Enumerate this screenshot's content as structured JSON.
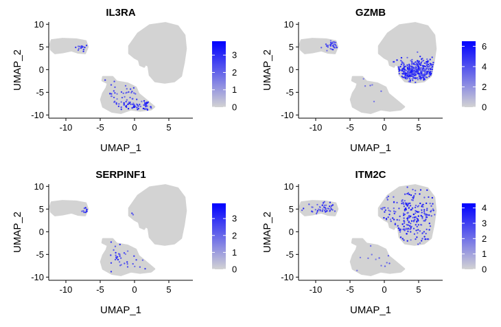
{
  "chart_data": [
    {
      "type": "scatter",
      "title": "IL3RA",
      "xlabel": "UMAP_1",
      "ylabel": "UMAP_2",
      "xlim": [
        -12.5,
        8.5
      ],
      "ylim": [
        -10.7,
        10.5
      ],
      "x_ticks": [
        -10,
        -5,
        0,
        5
      ],
      "y_ticks": [
        -10,
        -5,
        0,
        5,
        10
      ],
      "colorbar": {
        "min": 0,
        "max": 3.8,
        "ticks": [
          0,
          1,
          2,
          3
        ],
        "low_color": "#d3d3d3",
        "high_color": "#0000ff"
      },
      "hotspots": [
        {
          "cluster": "pdc",
          "x": -7.6,
          "y": 4.7,
          "sx": 0.5,
          "sy": 0.5,
          "count": 14,
          "max": 3.2
        },
        {
          "cluster": "bottom",
          "x": 1.2,
          "y": -8.0,
          "sx": 1.4,
          "sy": 0.7,
          "count": 60,
          "max": 3.5
        },
        {
          "cluster": "bottom",
          "x": -2.0,
          "y": -5.0,
          "sx": 2.0,
          "sy": 1.7,
          "count": 38,
          "max": 2.5
        }
      ]
    },
    {
      "type": "scatter",
      "title": "GZMB",
      "xlabel": "UMAP_1",
      "ylabel": "UMAP_2",
      "xlim": [
        -12.5,
        8.5
      ],
      "ylim": [
        -10.7,
        10.5
      ],
      "x_ticks": [
        -10,
        -5,
        0,
        5
      ],
      "y_ticks": [
        -10,
        -5,
        0,
        5,
        10
      ],
      "colorbar": {
        "min": 0,
        "max": 6.5,
        "ticks": [
          0,
          2,
          4,
          6
        ],
        "low_color": "#d3d3d3",
        "high_color": "#0000ff"
      },
      "hotspots": [
        {
          "cluster": "big",
          "x": 4.6,
          "y": -0.3,
          "sx": 1.7,
          "sy": 1.3,
          "count": 360,
          "max": 6.0
        },
        {
          "cluster": "pdc",
          "x": -7.3,
          "y": 5.3,
          "sx": 0.8,
          "sy": 0.6,
          "count": 30,
          "max": 5.5
        },
        {
          "cluster": "bottom",
          "x": -1.0,
          "y": -4.0,
          "sx": 2.0,
          "sy": 1.5,
          "count": 6,
          "max": 2.0
        }
      ]
    },
    {
      "type": "scatter",
      "title": "SERPINF1",
      "xlabel": "UMAP_1",
      "ylabel": "UMAP_2",
      "xlim": [
        -12.5,
        8.5
      ],
      "ylim": [
        -10.7,
        10.5
      ],
      "x_ticks": [
        -10,
        -5,
        0,
        5
      ],
      "y_ticks": [
        -10,
        -5,
        0,
        5,
        10
      ],
      "colorbar": {
        "min": 0,
        "max": 3.9,
        "ticks": [
          0,
          1,
          2,
          3
        ],
        "low_color": "#d3d3d3",
        "high_color": "#0000ff"
      },
      "hotspots": [
        {
          "cluster": "pdc",
          "x": -7.3,
          "y": 4.6,
          "sx": 0.4,
          "sy": 0.4,
          "count": 10,
          "max": 3.5
        },
        {
          "cluster": "bottom",
          "x": -1.5,
          "y": -5.5,
          "sx": 2.2,
          "sy": 2.0,
          "count": 35,
          "max": 3.0
        },
        {
          "cluster": "big",
          "x": -0.7,
          "y": 4.0,
          "sx": 0.3,
          "sy": 0.3,
          "count": 2,
          "max": 3.0
        }
      ]
    },
    {
      "type": "scatter",
      "title": "ITM2C",
      "xlabel": "UMAP_1",
      "ylabel": "UMAP_2",
      "xlim": [
        -12.5,
        8.5
      ],
      "ylim": [
        -10.7,
        10.5
      ],
      "x_ticks": [
        -10,
        -5,
        0,
        5
      ],
      "y_ticks": [
        -10,
        -5,
        0,
        5,
        10
      ],
      "colorbar": {
        "min": 0,
        "max": 4.3,
        "ticks": [
          0,
          1,
          2,
          3,
          4
        ],
        "low_color": "#d3d3d3",
        "high_color": "#0000ff"
      },
      "hotspots": [
        {
          "cluster": "big",
          "x": 4.0,
          "y": 3.0,
          "sx": 2.6,
          "sy": 3.2,
          "count": 230,
          "max": 4.0
        },
        {
          "cluster": "pdc",
          "x": -9.0,
          "y": 5.0,
          "sx": 1.4,
          "sy": 0.7,
          "count": 45,
          "max": 3.5
        },
        {
          "cluster": "bottom",
          "x": -1.0,
          "y": -6.0,
          "sx": 2.0,
          "sy": 2.0,
          "count": 12,
          "max": 2.0
        }
      ]
    }
  ]
}
